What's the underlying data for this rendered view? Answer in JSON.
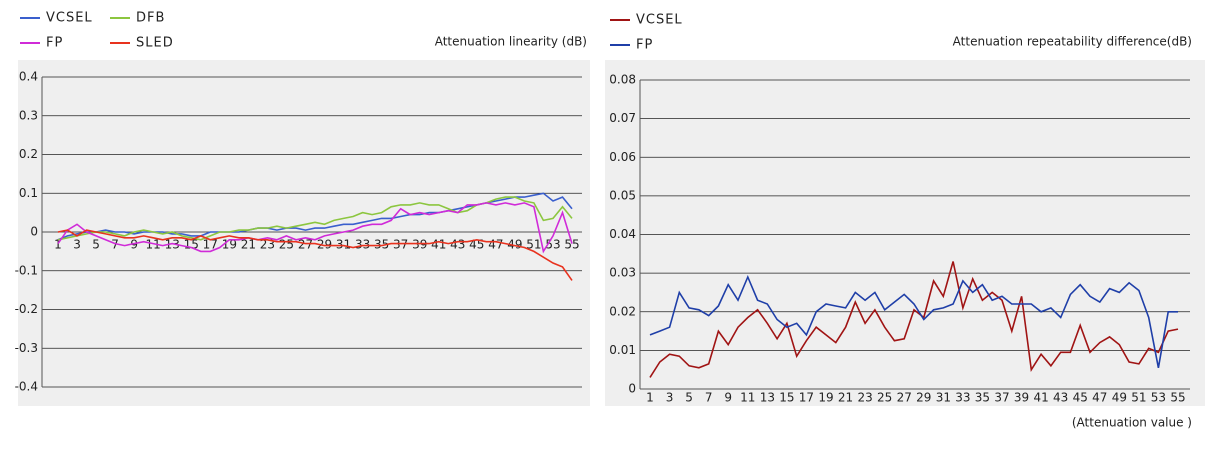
{
  "chart_data": [
    {
      "type": "line",
      "axis_title": "Attenuation linearity (dB)",
      "categories": [
        1,
        null,
        3,
        null,
        5,
        null,
        7,
        null,
        9,
        null,
        11,
        null,
        13,
        null,
        15,
        null,
        17,
        null,
        19,
        null,
        21,
        null,
        23,
        null,
        25,
        null,
        27,
        null,
        29,
        null,
        31,
        null,
        33,
        null,
        35,
        null,
        37,
        null,
        39,
        null,
        41,
        null,
        43,
        null,
        45,
        null,
        47,
        null,
        49,
        null,
        51,
        null,
        53,
        null,
        55
      ],
      "ylim": [
        -0.4,
        0.4
      ],
      "yticks": [
        -0.4,
        -0.3,
        -0.2,
        -0.1,
        0,
        0.1,
        0.2,
        0.3,
        0.4
      ],
      "grid": true,
      "series": [
        {
          "name": "VCSEL",
          "color": "#3a5fcd",
          "values": [
            -0.02,
            -0.01,
            -0.005,
            0,
            0,
            0.005,
            0,
            0,
            -0.005,
            0,
            0,
            0,
            -0.005,
            -0.005,
            -0.01,
            -0.01,
            0,
            0,
            0,
            0,
            0.005,
            0.01,
            0.01,
            0.005,
            0.01,
            0.01,
            0.005,
            0.01,
            0.01,
            0.015,
            0.02,
            0.02,
            0.025,
            0.03,
            0.035,
            0.035,
            0.04,
            0.045,
            0.045,
            0.05,
            0.05,
            0.055,
            0.06,
            0.065,
            0.07,
            0.075,
            0.08,
            0.085,
            0.09,
            0.09,
            0.095,
            0.1,
            0.08,
            0.09,
            0.06
          ]
        },
        {
          "name": "DFB",
          "color": "#8cc63f",
          "values": [
            -0.02,
            -0.015,
            -0.01,
            -0.005,
            0,
            0,
            -0.005,
            -0.01,
            0,
            0.005,
            0,
            -0.005,
            0,
            -0.01,
            -0.015,
            -0.02,
            -0.01,
            0,
            0,
            0.005,
            0.005,
            0.01,
            0.01,
            0.015,
            0.01,
            0.015,
            0.02,
            0.025,
            0.02,
            0.03,
            0.035,
            0.04,
            0.05,
            0.045,
            0.05,
            0.065,
            0.07,
            0.07,
            0.075,
            0.07,
            0.07,
            0.06,
            0.05,
            0.055,
            0.07,
            0.075,
            0.085,
            0.09,
            0.09,
            0.08,
            0.075,
            0.03,
            0.035,
            0.065,
            0.035
          ]
        },
        {
          "name": "FP",
          "color": "#d02bd8",
          "values": [
            -0.03,
            0.005,
            0.02,
            0,
            -0.01,
            -0.02,
            -0.03,
            -0.035,
            -0.03,
            -0.025,
            -0.03,
            -0.035,
            -0.03,
            -0.035,
            -0.04,
            -0.05,
            -0.05,
            -0.04,
            -0.02,
            -0.02,
            -0.015,
            -0.02,
            -0.015,
            -0.02,
            -0.01,
            -0.02,
            -0.015,
            -0.02,
            -0.01,
            -0.005,
            0,
            0.005,
            0.015,
            0.02,
            0.02,
            0.03,
            0.06,
            0.045,
            0.05,
            0.045,
            0.05,
            0.055,
            0.05,
            0.07,
            0.07,
            0.075,
            0.07,
            0.075,
            0.07,
            0.075,
            0.065,
            -0.05,
            -0.01,
            0.05,
            -0.03
          ]
        },
        {
          "name": "SLED",
          "color": "#e8321e",
          "values": [
            0,
            0.005,
            -0.01,
            0.005,
            0,
            -0.005,
            -0.01,
            -0.015,
            -0.015,
            -0.01,
            -0.015,
            -0.02,
            -0.015,
            -0.015,
            -0.02,
            -0.01,
            -0.02,
            -0.015,
            -0.01,
            -0.015,
            -0.015,
            -0.02,
            -0.02,
            -0.025,
            -0.025,
            -0.025,
            -0.03,
            -0.03,
            -0.035,
            -0.035,
            -0.035,
            -0.04,
            -0.035,
            -0.035,
            -0.035,
            -0.03,
            -0.03,
            -0.03,
            -0.03,
            -0.03,
            -0.025,
            -0.03,
            -0.025,
            -0.025,
            -0.02,
            -0.025,
            -0.025,
            -0.03,
            -0.035,
            -0.04,
            -0.05,
            -0.065,
            -0.08,
            -0.09,
            -0.125
          ]
        }
      ]
    },
    {
      "type": "line",
      "axis_title": "Attenuation repeatability difference(dB)",
      "x_label": "(Attenuation value )",
      "categories": [
        1,
        null,
        3,
        null,
        5,
        null,
        7,
        null,
        9,
        null,
        11,
        null,
        13,
        null,
        15,
        null,
        17,
        null,
        19,
        null,
        21,
        null,
        23,
        null,
        25,
        null,
        27,
        null,
        29,
        null,
        31,
        null,
        33,
        null,
        35,
        null,
        37,
        null,
        39,
        null,
        41,
        null,
        43,
        null,
        45,
        null,
        47,
        null,
        49,
        null,
        51,
        null,
        53,
        null,
        55
      ],
      "ylim": [
        0,
        0.08
      ],
      "yticks": [
        0,
        0.01,
        0.02,
        0.03,
        0.04,
        0.05,
        0.06,
        0.07,
        0.08
      ],
      "grid": true,
      "series": [
        {
          "name": "VCSEL",
          "color": "#a01414",
          "values": [
            0.003,
            0.007,
            0.009,
            0.0085,
            0.006,
            0.0055,
            0.0065,
            0.015,
            0.0115,
            0.016,
            0.0185,
            0.0205,
            0.017,
            0.013,
            0.017,
            0.0085,
            0.0125,
            0.016,
            0.014,
            0.012,
            0.016,
            0.0225,
            0.017,
            0.0205,
            0.016,
            0.0125,
            0.013,
            0.0205,
            0.0185,
            0.028,
            0.024,
            0.033,
            0.021,
            0.0285,
            0.023,
            0.025,
            0.023,
            0.015,
            0.024,
            0.005,
            0.009,
            0.006,
            0.0095,
            0.0095,
            0.0165,
            0.0095,
            0.012,
            0.0135,
            0.0115,
            0.007,
            0.0065,
            0.0105,
            0.0095,
            0.015,
            0.0155
          ]
        },
        {
          "name": "FP",
          "color": "#1f3fa8",
          "values": [
            0.014,
            0.015,
            0.016,
            0.025,
            0.021,
            0.0205,
            0.019,
            0.0215,
            0.027,
            0.023,
            0.029,
            0.023,
            0.022,
            0.018,
            0.016,
            0.017,
            0.014,
            0.02,
            0.022,
            0.0215,
            0.021,
            0.025,
            0.023,
            0.025,
            0.0205,
            0.0225,
            0.0245,
            0.022,
            0.018,
            0.0205,
            0.021,
            0.022,
            0.028,
            0.025,
            0.027,
            0.023,
            0.024,
            0.022,
            0.022,
            0.022,
            0.02,
            0.021,
            0.0185,
            0.0245,
            0.027,
            0.024,
            0.0225,
            0.026,
            0.025,
            0.0275,
            0.0255,
            0.0185,
            0.0055,
            0.02,
            0.02
          ]
        }
      ]
    }
  ]
}
